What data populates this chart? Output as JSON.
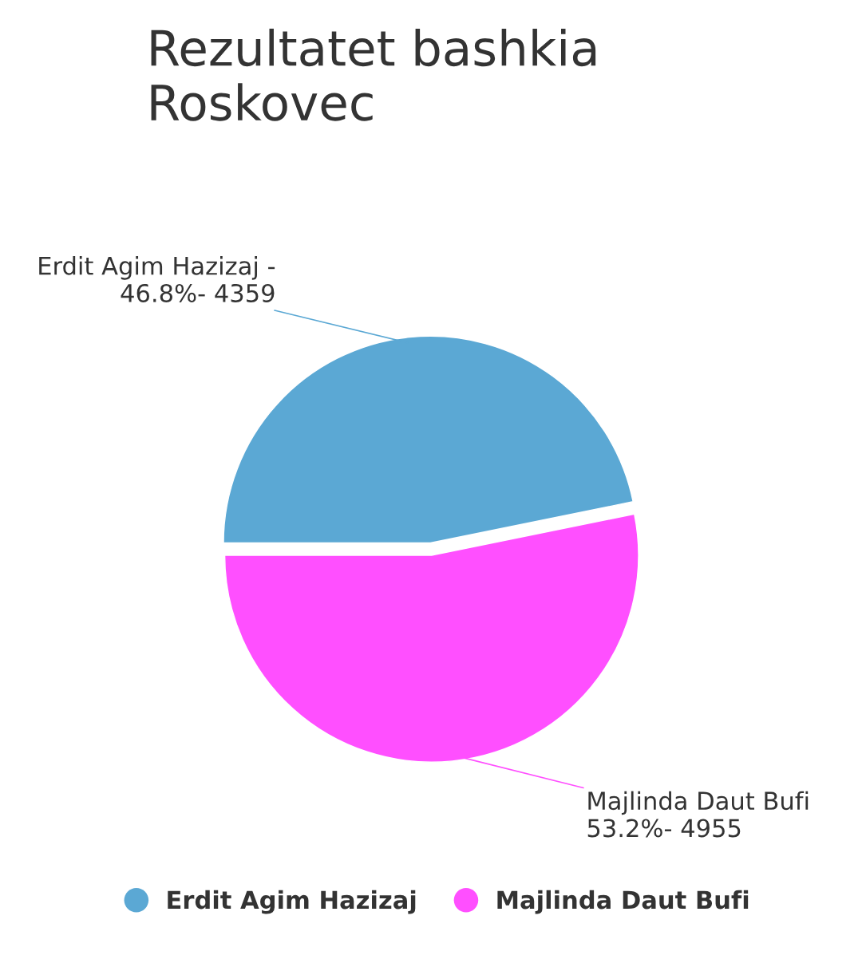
{
  "chart_data": {
    "type": "pie",
    "title": "Rezultatet bashkia\nRoskovec",
    "categories": [
      "Erdit Agim Hazizaj",
      "Majlinda Daut Bufi"
    ],
    "values": [
      46.8,
      53.2
    ],
    "colors": [
      "#5ba8d4",
      "#ff4fff"
    ],
    "annotations": [
      "Erdit Agim Hazizaj -\n46.8%- 4359",
      "Majlinda Daut Bufi\n53.2%- 4955"
    ],
    "legend": "bottom"
  }
}
